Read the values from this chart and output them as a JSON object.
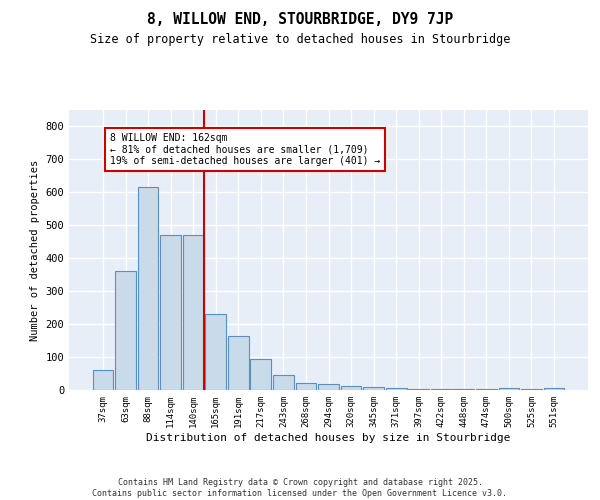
{
  "title": "8, WILLOW END, STOURBRIDGE, DY9 7JP",
  "subtitle": "Size of property relative to detached houses in Stourbridge",
  "xlabel": "Distribution of detached houses by size in Stourbridge",
  "ylabel": "Number of detached properties",
  "categories": [
    "37sqm",
    "63sqm",
    "88sqm",
    "114sqm",
    "140sqm",
    "165sqm",
    "191sqm",
    "217sqm",
    "243sqm",
    "268sqm",
    "294sqm",
    "320sqm",
    "345sqm",
    "371sqm",
    "397sqm",
    "422sqm",
    "448sqm",
    "474sqm",
    "500sqm",
    "525sqm",
    "551sqm"
  ],
  "values": [
    60,
    362,
    615,
    470,
    470,
    232,
    165,
    95,
    45,
    20,
    18,
    13,
    8,
    5,
    3,
    3,
    2,
    2,
    5,
    2,
    5
  ],
  "bar_color": "#c9daea",
  "bar_edge_color": "#5a8fc3",
  "background_color": "#e8eef8",
  "grid_color": "#ffffff",
  "red_line_x": 4.5,
  "annotation_text_line1": "8 WILLOW END: 162sqm",
  "annotation_text_line2": "← 81% of detached houses are smaller (1,709)",
  "annotation_text_line3": "19% of semi-detached houses are larger (401) →",
  "red_line_color": "#cc0000",
  "annotation_box_color": "#ffffff",
  "annotation_box_edge_color": "#cc0000",
  "ylim": [
    0,
    850
  ],
  "yticks": [
    0,
    100,
    200,
    300,
    400,
    500,
    600,
    700,
    800
  ],
  "footer_line1": "Contains HM Land Registry data © Crown copyright and database right 2025.",
  "footer_line2": "Contains public sector information licensed under the Open Government Licence v3.0."
}
